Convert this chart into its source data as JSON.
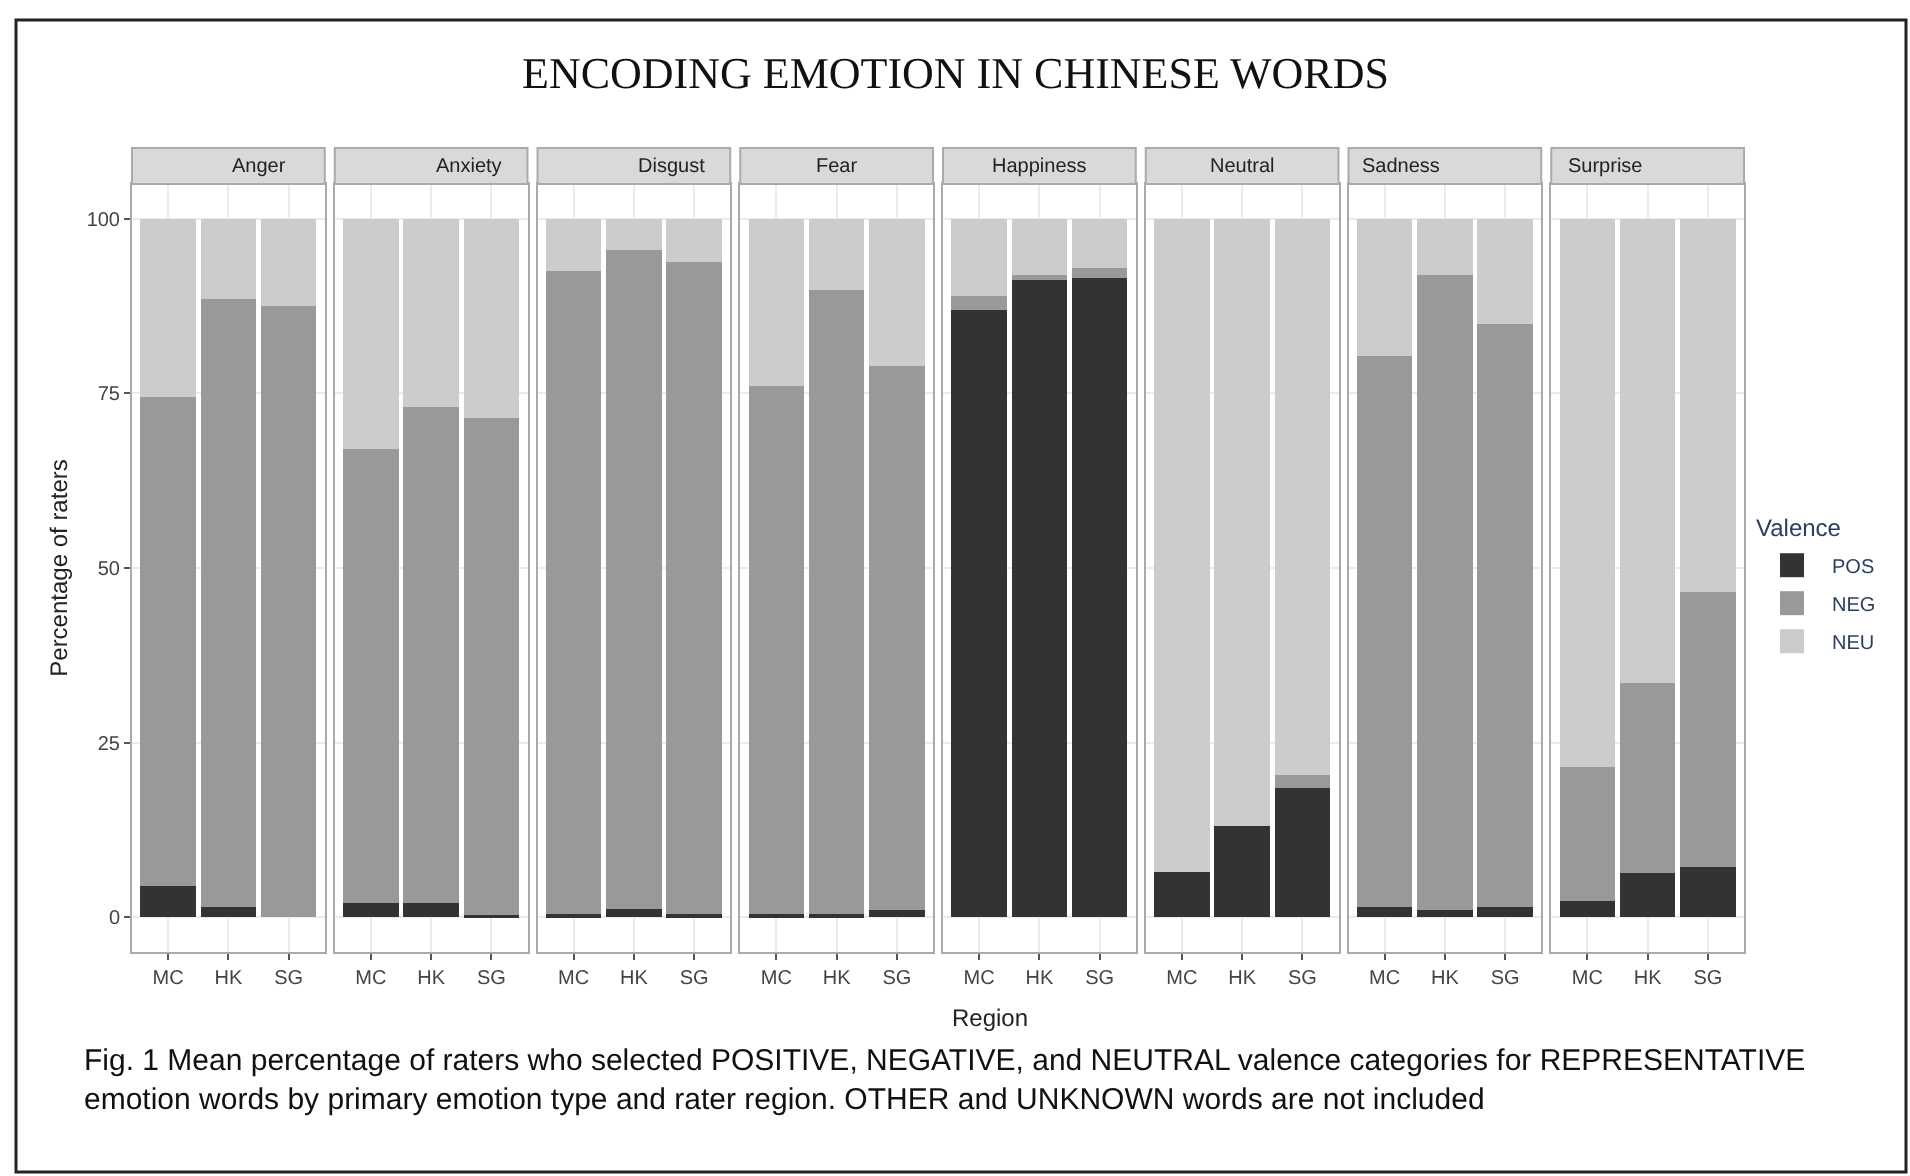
{
  "chart_data": [
    {
      "type": "bar",
      "stacked": true,
      "title": "Anger",
      "ylabel": "Percentage of raters",
      "annotations": [
        "ENCODING EMOTION IN CHINESE WORDS",
        "Fig. 1 Mean percentage of raters who selected POSITIVE, NEGATIVE, and NEUTRAL valence categories for REPRESENTATIVE emotion words by primary emotion type and rater region. OTHER and UNKNOWN words are not included"
      ],
      "categories": [
        "MC",
        "HK",
        "SG"
      ],
      "ylim": [
        -5,
        105
      ],
      "yticks": [
        0,
        25,
        50,
        75,
        100
      ],
      "grid": true,
      "series": [
        {
          "color": "#333333",
          "values": [
            4.5,
            1.5,
            0
          ]
        },
        {
          "color": "#999999",
          "values": [
            70,
            87,
            87.5
          ]
        },
        {
          "color": "#cccccc",
          "values": [
            25.5,
            11.5,
            12.5
          ]
        }
      ]
    },
    {
      "type": "bar",
      "stacked": true,
      "title": "Anxiety",
      "categories": [
        "MC",
        "HK",
        "SG"
      ],
      "ylim": [
        -5,
        105
      ],
      "yticks": [
        0,
        25,
        50,
        75,
        100
      ],
      "grid": true,
      "tick_labels": "x",
      "series": [
        {
          "color": "#333333",
          "values": [
            2,
            2,
            0.3
          ]
        },
        {
          "color": "#999999",
          "values": [
            65,
            71,
            71.2
          ]
        },
        {
          "color": "#cccccc",
          "values": [
            33,
            27,
            28.5
          ]
        }
      ]
    },
    {
      "type": "bar",
      "stacked": true,
      "title": "Disgust",
      "categories": [
        "MC",
        "HK",
        "SG"
      ],
      "ylim": [
        -5,
        105
      ],
      "yticks": [
        0,
        25,
        50,
        75,
        100
      ],
      "grid": true,
      "tick_labels": "x",
      "series": [
        {
          "color": "#333333",
          "values": [
            0.5,
            1.2,
            0.5
          ]
        },
        {
          "color": "#999999",
          "values": [
            92,
            94.3,
            93.3
          ]
        },
        {
          "color": "#cccccc",
          "values": [
            7.5,
            4.5,
            6.2
          ]
        }
      ]
    },
    {
      "type": "bar",
      "stacked": true,
      "title": "Fear",
      "categories": [
        "MC",
        "HK",
        "SG"
      ],
      "ylim": [
        -5,
        105
      ],
      "yticks": [
        0,
        25,
        50,
        75,
        100
      ],
      "grid": true,
      "tick_labels": "x",
      "series": [
        {
          "color": "#333333",
          "values": [
            0.5,
            0.5,
            1
          ]
        },
        {
          "color": "#999999",
          "values": [
            75.5,
            89.3,
            78
          ]
        },
        {
          "color": "#cccccc",
          "values": [
            24,
            10.2,
            21
          ]
        }
      ]
    },
    {
      "type": "bar",
      "stacked": true,
      "title": "Happiness",
      "xlabel": "Region",
      "categories": [
        "MC",
        "HK",
        "SG"
      ],
      "ylim": [
        -5,
        105
      ],
      "yticks": [
        0,
        25,
        50,
        75,
        100
      ],
      "grid": true,
      "tick_labels": "x",
      "series": [
        {
          "color": "#333333",
          "values": [
            87,
            91.5,
            91.5
          ]
        },
        {
          "color": "#999999",
          "values": [
            2,
            0.5,
            1.5
          ]
        },
        {
          "color": "#cccccc",
          "values": [
            11,
            8,
            7
          ]
        }
      ]
    },
    {
      "type": "bar",
      "stacked": true,
      "title": "Neutral",
      "categories": [
        "MC",
        "HK",
        "SG"
      ],
      "ylim": [
        -5,
        105
      ],
      "yticks": [
        0,
        25,
        50,
        75,
        100
      ],
      "grid": true,
      "tick_labels": "x",
      "series": [
        {
          "color": "#333333",
          "values": [
            6.5,
            13,
            18.5
          ]
        },
        {
          "color": "#999999",
          "values": [
            0,
            0,
            1.8
          ]
        },
        {
          "color": "#cccccc",
          "values": [
            93.5,
            87,
            79.7
          ]
        }
      ]
    },
    {
      "type": "bar",
      "stacked": true,
      "title": "Sadness",
      "categories": [
        "MC",
        "HK",
        "SG"
      ],
      "ylim": [
        -5,
        105
      ],
      "yticks": [
        0,
        25,
        50,
        75,
        100
      ],
      "grid": true,
      "tick_labels": "x",
      "series": [
        {
          "color": "#333333",
          "values": [
            1.5,
            1,
            1.5
          ]
        },
        {
          "color": "#999999",
          "values": [
            78.8,
            91,
            83.5
          ]
        },
        {
          "color": "#cccccc",
          "values": [
            19.7,
            8,
            15
          ]
        }
      ]
    },
    {
      "type": "bar",
      "stacked": true,
      "title": "Surprise",
      "legend": "right",
      "legend_title": "Valence",
      "categories": [
        "MC",
        "HK",
        "SG"
      ],
      "ylim": [
        -5,
        105
      ],
      "yticks": [
        0,
        25,
        50,
        75,
        100
      ],
      "grid": true,
      "tick_labels": "x",
      "series": [
        {
          "name": "POS",
          "color": "#333333",
          "values": [
            2.3,
            6.3,
            7.2
          ]
        },
        {
          "name": "NEG",
          "color": "#999999",
          "values": [
            19.2,
            27.2,
            39.3
          ]
        },
        {
          "name": "NEU",
          "color": "#cccccc",
          "values": [
            78.5,
            66.5,
            53.5
          ]
        }
      ]
    }
  ]
}
